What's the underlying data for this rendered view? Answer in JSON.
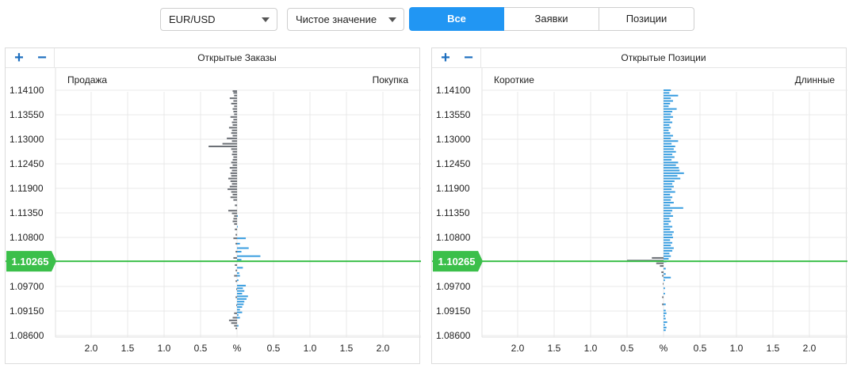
{
  "controls": {
    "symbol": "EUR/USD",
    "mode": "Чистое значение",
    "tabs": [
      {
        "label": "Все",
        "active": true
      },
      {
        "label": "Заявки",
        "active": false
      },
      {
        "label": "Позиции",
        "active": false
      }
    ]
  },
  "panels": [
    {
      "title": "Открытые Заказы",
      "left_label": "Продажа",
      "right_label": "Покупка"
    },
    {
      "title": "Открытые Позиции",
      "left_label": "Короткие",
      "right_label": "Длинные"
    }
  ],
  "zoom": {
    "plus": "+",
    "minus": "−"
  },
  "colors": {
    "accent": "#2196f3",
    "long": "#3a9ee0",
    "short": "#6b6f75",
    "price": "#3bbf4a",
    "grid": "#e9e9e9"
  },
  "chart_data": [
    {
      "type": "bar",
      "title": "Открытые Заказы",
      "orientation": "horizontal-diverging",
      "y_ticks": [
        "1.14100",
        "1.13550",
        "1.13000",
        "1.12450",
        "1.11900",
        "1.11350",
        "1.10800",
        "1.10265",
        "1.09700",
        "1.09150",
        "1.08600"
      ],
      "x_ticks": [
        "2.0",
        "1.5",
        "1.0",
        "0.5",
        "%",
        "0.5",
        "1.0",
        "1.5",
        "2.0"
      ],
      "xlim": [
        -2.5,
        2.5
      ],
      "ylim": [
        1.086,
        1.1415
      ],
      "current_price": "1.10265",
      "series": [
        {
          "name": "Продажа",
          "side": "left",
          "points": [
            [
              1.1408,
              0.06
            ],
            [
              1.1404,
              0.05
            ],
            [
              1.1398,
              0.04
            ],
            [
              1.1392,
              0.1
            ],
            [
              1.1386,
              0.05
            ],
            [
              1.138,
              0.08
            ],
            [
              1.1374,
              0.04
            ],
            [
              1.1368,
              0.06
            ],
            [
              1.1362,
              0.05
            ],
            [
              1.1356,
              0.04
            ],
            [
              1.135,
              0.09
            ],
            [
              1.1344,
              0.05
            ],
            [
              1.1338,
              0.07
            ],
            [
              1.1332,
              0.06
            ],
            [
              1.1326,
              0.11
            ],
            [
              1.132,
              0.07
            ],
            [
              1.1314,
              0.08
            ],
            [
              1.1308,
              0.06
            ],
            [
              1.1302,
              0.14
            ],
            [
              1.1296,
              0.07
            ],
            [
              1.129,
              0.2
            ],
            [
              1.1284,
              0.39
            ],
            [
              1.1278,
              0.08
            ],
            [
              1.1272,
              0.06
            ],
            [
              1.1266,
              0.07
            ],
            [
              1.126,
              0.05
            ],
            [
              1.1254,
              0.06
            ],
            [
              1.1248,
              0.08
            ],
            [
              1.1242,
              0.06
            ],
            [
              1.1236,
              0.1
            ],
            [
              1.123,
              0.07
            ],
            [
              1.1224,
              0.09
            ],
            [
              1.1218,
              0.08
            ],
            [
              1.1212,
              0.12
            ],
            [
              1.1206,
              0.09
            ],
            [
              1.12,
              0.07
            ],
            [
              1.1194,
              0.1
            ],
            [
              1.1188,
              0.13
            ],
            [
              1.1182,
              0.08
            ],
            [
              1.1176,
              0.06
            ],
            [
              1.117,
              0.09
            ],
            [
              1.1164,
              0.05
            ],
            [
              1.1152,
              0.03
            ],
            [
              1.114,
              0.12
            ],
            [
              1.1134,
              0.07
            ],
            [
              1.1128,
              0.04
            ],
            [
              1.1122,
              0.05
            ],
            [
              1.1116,
              0.06
            ],
            [
              1.111,
              0.04
            ],
            [
              1.1098,
              0.03
            ],
            [
              1.1086,
              0.02
            ],
            [
              1.1078,
              0.05
            ],
            [
              1.1066,
              0.02
            ],
            [
              1.1048,
              0.02
            ],
            [
              1.1034,
              0.05
            ],
            [
              1.1018,
              0.03
            ],
            [
              1.1006,
              0.02
            ],
            [
              1.0994,
              0.04
            ],
            [
              1.0982,
              0.02
            ],
            [
              1.0964,
              0.01
            ],
            [
              1.0946,
              0.02
            ],
            [
              1.0928,
              0.01
            ],
            [
              1.091,
              0.04
            ],
            [
              1.09,
              0.06
            ],
            [
              1.0894,
              0.11
            ],
            [
              1.0888,
              0.08
            ],
            [
              1.0882,
              0.04
            ],
            [
              1.0876,
              0.02
            ]
          ]
        },
        {
          "name": "Покупка",
          "side": "right",
          "points": [
            [
              1.1128,
              0.01
            ],
            [
              1.1104,
              0.01
            ],
            [
              1.1078,
              0.12
            ],
            [
              1.1066,
              0.04
            ],
            [
              1.1056,
              0.16
            ],
            [
              1.1048,
              0.06
            ],
            [
              1.1038,
              0.32
            ],
            [
              1.103,
              0.06
            ],
            [
              1.1012,
              0.08
            ],
            [
              1.1,
              0.03
            ],
            [
              1.0994,
              0.04
            ],
            [
              1.0984,
              0.02
            ],
            [
              1.0972,
              0.12
            ],
            [
              1.0966,
              0.08
            ],
            [
              1.096,
              0.1
            ],
            [
              1.0954,
              0.07
            ],
            [
              1.0948,
              0.15
            ],
            [
              1.0942,
              0.13
            ],
            [
              1.0936,
              0.1
            ],
            [
              1.093,
              0.09
            ],
            [
              1.0924,
              0.07
            ],
            [
              1.0918,
              0.04
            ],
            [
              1.0912,
              0.07
            ],
            [
              1.0906,
              0.02
            ],
            [
              1.09,
              0.04
            ],
            [
              1.0882,
              0.02
            ]
          ]
        }
      ]
    },
    {
      "type": "bar",
      "title": "Открытые Позиции",
      "orientation": "horizontal-diverging",
      "y_ticks": [
        "1.14100",
        "1.13550",
        "1.13000",
        "1.12450",
        "1.11900",
        "1.11350",
        "1.10800",
        "1.10265",
        "1.09700",
        "1.09150",
        "1.08600"
      ],
      "x_ticks": [
        "2.0",
        "1.5",
        "1.0",
        "0.5",
        "%",
        "0.5",
        "1.0",
        "1.5",
        "2.0"
      ],
      "xlim": [
        -2.5,
        2.5
      ],
      "ylim": [
        1.086,
        1.1415
      ],
      "current_price": "1.10265",
      "series": [
        {
          "name": "Короткие",
          "side": "left",
          "points": [
            [
              1.1034,
              0.16
            ],
            [
              1.1028,
              0.5
            ],
            [
              1.1022,
              0.1
            ],
            [
              1.1016,
              0.05
            ],
            [
              1.1002,
              0.03
            ],
            [
              1.0994,
              0.02
            ],
            [
              1.0976,
              0.01
            ],
            [
              1.0946,
              0.02
            ],
            [
              1.093,
              0.02
            ]
          ]
        },
        {
          "name": "Длинные",
          "side": "right",
          "points": [
            [
              1.141,
              0.1
            ],
            [
              1.1404,
              0.08
            ],
            [
              1.1398,
              0.2
            ],
            [
              1.1392,
              0.1
            ],
            [
              1.1386,
              0.13
            ],
            [
              1.138,
              0.09
            ],
            [
              1.1374,
              0.07
            ],
            [
              1.1368,
              0.18
            ],
            [
              1.1362,
              0.12
            ],
            [
              1.1356,
              0.1
            ],
            [
              1.135,
              0.13
            ],
            [
              1.1344,
              0.09
            ],
            [
              1.1338,
              0.12
            ],
            [
              1.1332,
              0.08
            ],
            [
              1.1326,
              0.1
            ],
            [
              1.132,
              0.07
            ],
            [
              1.1314,
              0.09
            ],
            [
              1.1308,
              0.13
            ],
            [
              1.1302,
              0.1
            ],
            [
              1.1296,
              0.2
            ],
            [
              1.129,
              0.11
            ],
            [
              1.1284,
              0.16
            ],
            [
              1.1278,
              0.14
            ],
            [
              1.1272,
              0.17
            ],
            [
              1.1266,
              0.12
            ],
            [
              1.126,
              0.15
            ],
            [
              1.1254,
              0.11
            ],
            [
              1.1248,
              0.2
            ],
            [
              1.1242,
              0.17
            ],
            [
              1.1236,
              0.21
            ],
            [
              1.123,
              0.22
            ],
            [
              1.1224,
              0.28
            ],
            [
              1.1218,
              0.19
            ],
            [
              1.1212,
              0.23
            ],
            [
              1.1206,
              0.15
            ],
            [
              1.12,
              0.12
            ],
            [
              1.1194,
              0.14
            ],
            [
              1.1188,
              0.11
            ],
            [
              1.1182,
              0.16
            ],
            [
              1.1176,
              0.09
            ],
            [
              1.117,
              0.12
            ],
            [
              1.1164,
              0.1
            ],
            [
              1.1158,
              0.14
            ],
            [
              1.1152,
              0.09
            ],
            [
              1.1146,
              0.27
            ],
            [
              1.114,
              0.12
            ],
            [
              1.1134,
              0.1
            ],
            [
              1.1128,
              0.13
            ],
            [
              1.1122,
              0.08
            ],
            [
              1.1116,
              0.1
            ],
            [
              1.111,
              0.07
            ],
            [
              1.1104,
              0.12
            ],
            [
              1.1098,
              0.09
            ],
            [
              1.1092,
              0.14
            ],
            [
              1.1086,
              0.12
            ],
            [
              1.108,
              0.13
            ],
            [
              1.1074,
              0.09
            ],
            [
              1.1068,
              0.12
            ],
            [
              1.1062,
              0.1
            ],
            [
              1.1056,
              0.14
            ],
            [
              1.105,
              0.12
            ],
            [
              1.1044,
              0.08
            ],
            [
              1.1038,
              0.1
            ],
            [
              1.1032,
              0.07
            ],
            [
              1.1026,
              0.04
            ],
            [
              1.101,
              0.03
            ],
            [
              1.0998,
              0.03
            ],
            [
              1.099,
              0.1
            ],
            [
              1.0984,
              0.02
            ],
            [
              1.0966,
              0.02
            ],
            [
              1.0954,
              0.02
            ],
            [
              1.093,
              0.03
            ],
            [
              1.0916,
              0.03
            ],
            [
              1.091,
              0.04
            ],
            [
              1.0904,
              0.02
            ],
            [
              1.0898,
              0.03
            ],
            [
              1.089,
              0.05
            ],
            [
              1.0884,
              0.02
            ],
            [
              1.0878,
              0.04
            ],
            [
              1.0872,
              0.03
            ]
          ]
        }
      ]
    }
  ]
}
